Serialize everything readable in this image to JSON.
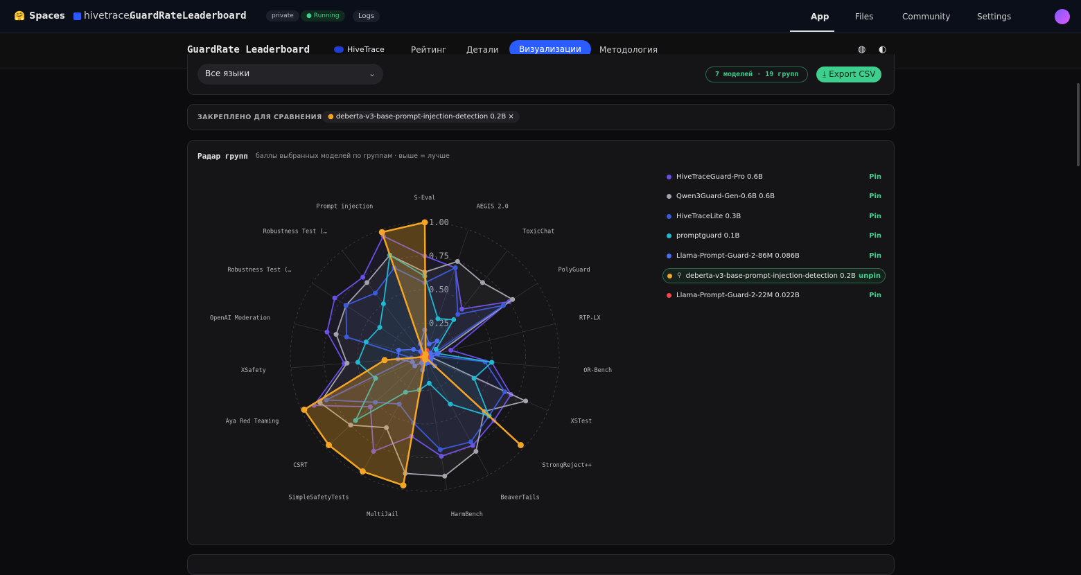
{
  "topbar": {
    "spaces": "Spaces",
    "owner": "hivetrace/",
    "repo": "GuardRateLeaderboard",
    "visibility": "private",
    "status": "Running",
    "logs": "Logs",
    "tabs": [
      "App",
      "Files",
      "Community",
      "Settings"
    ]
  },
  "nav": {
    "title": "GuardRate Leaderboard",
    "brand": "HiveTrace",
    "links": [
      "Рейтинг",
      "Детали",
      "Визуализации",
      "Методология"
    ],
    "active": 2
  },
  "filters": {
    "language": "Все языки",
    "summary": "7 моделей · 19 групп",
    "export": "Export CSV"
  },
  "pinned": {
    "label": "ЗАКРЕПЛЕНО ДЛЯ СРАВНЕНИЯ",
    "chip": "deberta-v3-base-prompt-injection-detection 0.2B",
    "close": "×"
  },
  "legend": {
    "actions": [
      "Pin",
      "Pin",
      "Pin",
      "Pin",
      "Pin",
      "unpin",
      "Pin"
    ],
    "pinned": 5
  },
  "chart_data": {
    "type": "radar",
    "title": "Радар групп",
    "subtitle": "баллы выбранных моделей по группам · выше = лучше",
    "categories": [
      "S-Eval",
      "AEGIS 2.0",
      "ToxicChat",
      "PolyGuard",
      "RTP-LX",
      "OR-Bench",
      "XSTest",
      "StrongReject++",
      "BeaverTails",
      "HarmBench",
      "MultiJail",
      "SimpleSafetyTests",
      "CSRT",
      "Aya Red Teaming",
      "XSafety",
      "OpenAI Moderation",
      "Robustness Test (…",
      "Robustness Test (…",
      "Prompt injection"
    ],
    "rlim": [
      0,
      1
    ],
    "rticks": [
      0.25,
      {
        "value": 0.5,
        "label": "0.50"
      },
      0.75,
      {
        "value": 1,
        "label": "1.00"
      }
    ],
    "grid": true,
    "series": [
      {
        "name": "HiveTraceGuard-Pro 0.6B",
        "color": "#6b4ee6",
        "values": [
          0.75,
          0.7,
          0.45,
          0.75,
          0.2,
          0.5,
          0.7,
          0.7,
          0.75,
          0.75,
          0.6,
          0.8,
          0.55,
          0.9,
          0.6,
          0.75,
          0.8,
          0.75,
          0.95
        ]
      },
      {
        "name": "Qwen3Guard-Gen-0.6B 0.6B",
        "color": "#a3a3ad",
        "values": [
          0.63,
          0.75,
          0.7,
          0.78,
          0.1,
          0.05,
          0.82,
          0.6,
          0.8,
          0.9,
          0.88,
          0.6,
          0.75,
          0.85,
          0.58,
          0.68,
          0.7,
          0.7,
          0.8
        ]
      },
      {
        "name": "HiveTraceLite 0.3B",
        "color": "#3b5bdb",
        "values": [
          0.55,
          0.7,
          0.4,
          0.7,
          0.05,
          0.45,
          0.65,
          0.65,
          0.72,
          0.7,
          0.5,
          0.4,
          0.5,
          0.8,
          0.1,
          0.6,
          0.7,
          0.6,
          0.7
        ]
      },
      {
        "name": "promptguard 0.1B",
        "color": "#22b8cf",
        "values": [
          0.6,
          0.3,
          0.35,
          0.1,
          0.1,
          0.5,
          0.4,
          0.65,
          0.4,
          0.2,
          0.25,
          0.3,
          0.7,
          0.4,
          0.5,
          0.45,
          0.4,
          0.5,
          0.8
        ]
      },
      {
        "name": "Llama-Prompt-Guard-2-86M 0.086B",
        "color": "#4c6ef5",
        "values": [
          0.2,
          0.1,
          0.15,
          0.05,
          0.1,
          0.05,
          0.05,
          0.1,
          0.05,
          0.05,
          0.1,
          0.05,
          0.1,
          0.1,
          0.2,
          0.2,
          0.1,
          0.05,
          0.1
        ]
      },
      {
        "name": "deberta-v3-base-prompt-injection-detection 0.2B",
        "color": "#f5a524",
        "values": [
          1,
          0.02,
          0,
          0,
          0,
          0,
          0,
          0.97,
          0,
          0.02,
          0.97,
          0.97,
          0.97,
          0.98,
          0.3,
          0,
          0,
          0,
          0.98
        ]
      },
      {
        "name": "Llama-Prompt-Guard-2-22M 0.022B",
        "color": "#f04848",
        "values": [
          0.02,
          0.05,
          0.02,
          0.02,
          0.02,
          0.02,
          0.02,
          0.02,
          0.02,
          0.02,
          0.02,
          0.02,
          0.02,
          0.02,
          0.02,
          0.02,
          0.02,
          0.02,
          0.02
        ]
      }
    ]
  }
}
